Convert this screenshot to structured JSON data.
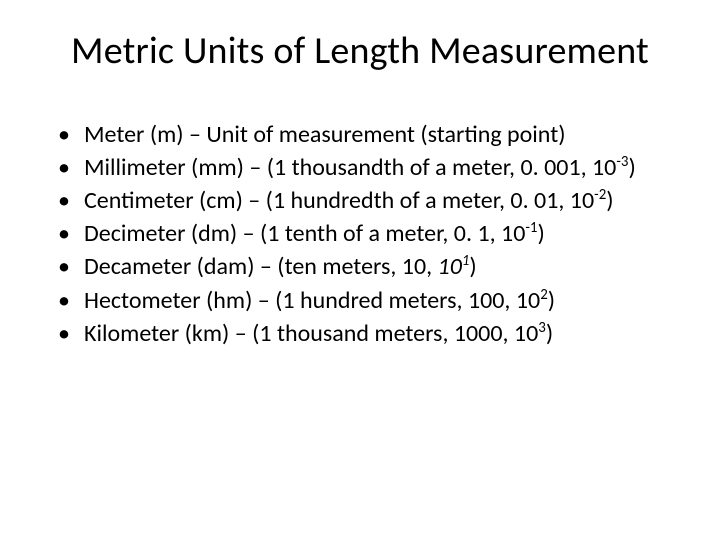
{
  "slide": {
    "background_color": "#ffffff",
    "text_color": "#000000",
    "title": {
      "text": "Metric Units of Length Measurement",
      "fontsize": 38,
      "align": "center",
      "weight": "normal"
    },
    "bullets": {
      "fontsize": 24,
      "marker": "•",
      "items": [
        {
          "pre": "Meter (m) – Unit of measurement (starting point)",
          "base": "",
          "exp": "",
          "post": ""
        },
        {
          "pre": "Millimeter (mm) – (1 thousandth of a meter, 0. 001, 10",
          "base": "",
          "exp": "-3",
          "post": ")"
        },
        {
          "pre": "Centimeter (cm) – (1 hundredth of a meter, 0. 01, 10",
          "base": "",
          "exp": "-2",
          "post": ")"
        },
        {
          "pre": "Decimeter (dm) – (1 tenth of a meter, 0. 1, 10",
          "base": "",
          "exp": "-1",
          "post": ")"
        },
        {
          "pre": "Decameter (dam) – (ten meters, 10, ",
          "base": "10",
          "exp": "1",
          "post": ")",
          "italic_base": true
        },
        {
          "pre": "Hectometer (hm) – (1 hundred meters, 100, 10",
          "base": "",
          "exp": "2",
          "post": ")"
        },
        {
          "pre": "Kilometer (km) – (1 thousand meters, 1000, 10",
          "base": "",
          "exp": "3",
          "post": ")"
        }
      ]
    }
  }
}
